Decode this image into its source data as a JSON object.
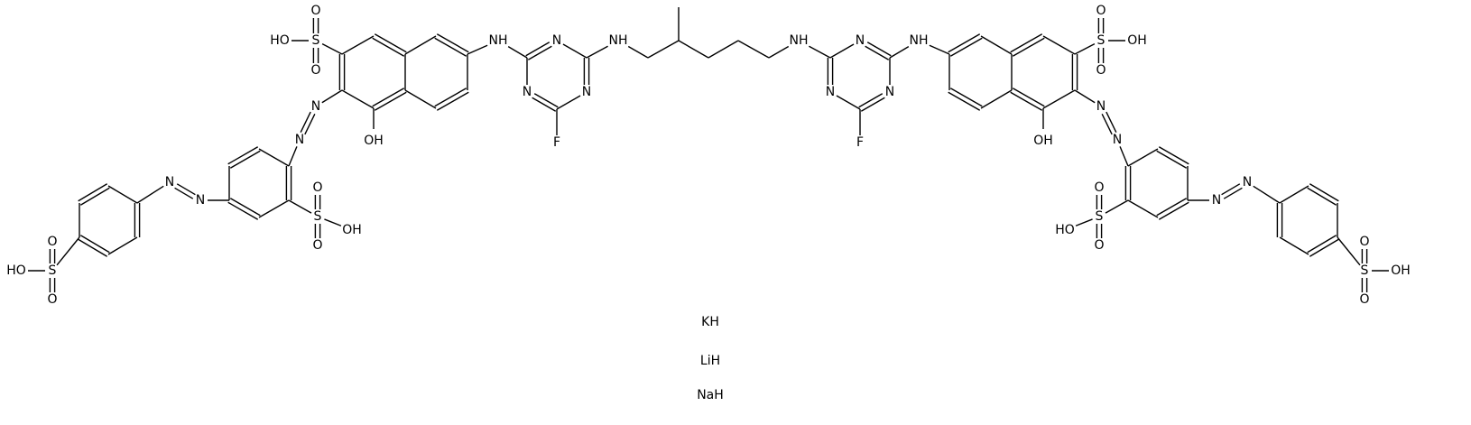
{
  "left_dye": {
    "atom_labels": [
      "S",
      "O",
      "O",
      "HO",
      "OH",
      "N",
      "N",
      "S",
      "O",
      "O",
      "OH",
      "N",
      "N",
      "S",
      "O",
      "O",
      "HO",
      "NH",
      "N",
      "N",
      "N",
      "F",
      "NH"
    ]
  },
  "right_dye": {
    "atom_labels": [
      "S",
      "O",
      "O",
      "OH",
      "OH",
      "N",
      "N",
      "S",
      "O",
      "O",
      "HO",
      "N",
      "N",
      "S",
      "O",
      "O",
      "OH",
      "NH",
      "N",
      "N",
      "N",
      "F",
      "NH"
    ]
  },
  "counterions": [
    "KH",
    "LiH",
    "NaH"
  ]
}
